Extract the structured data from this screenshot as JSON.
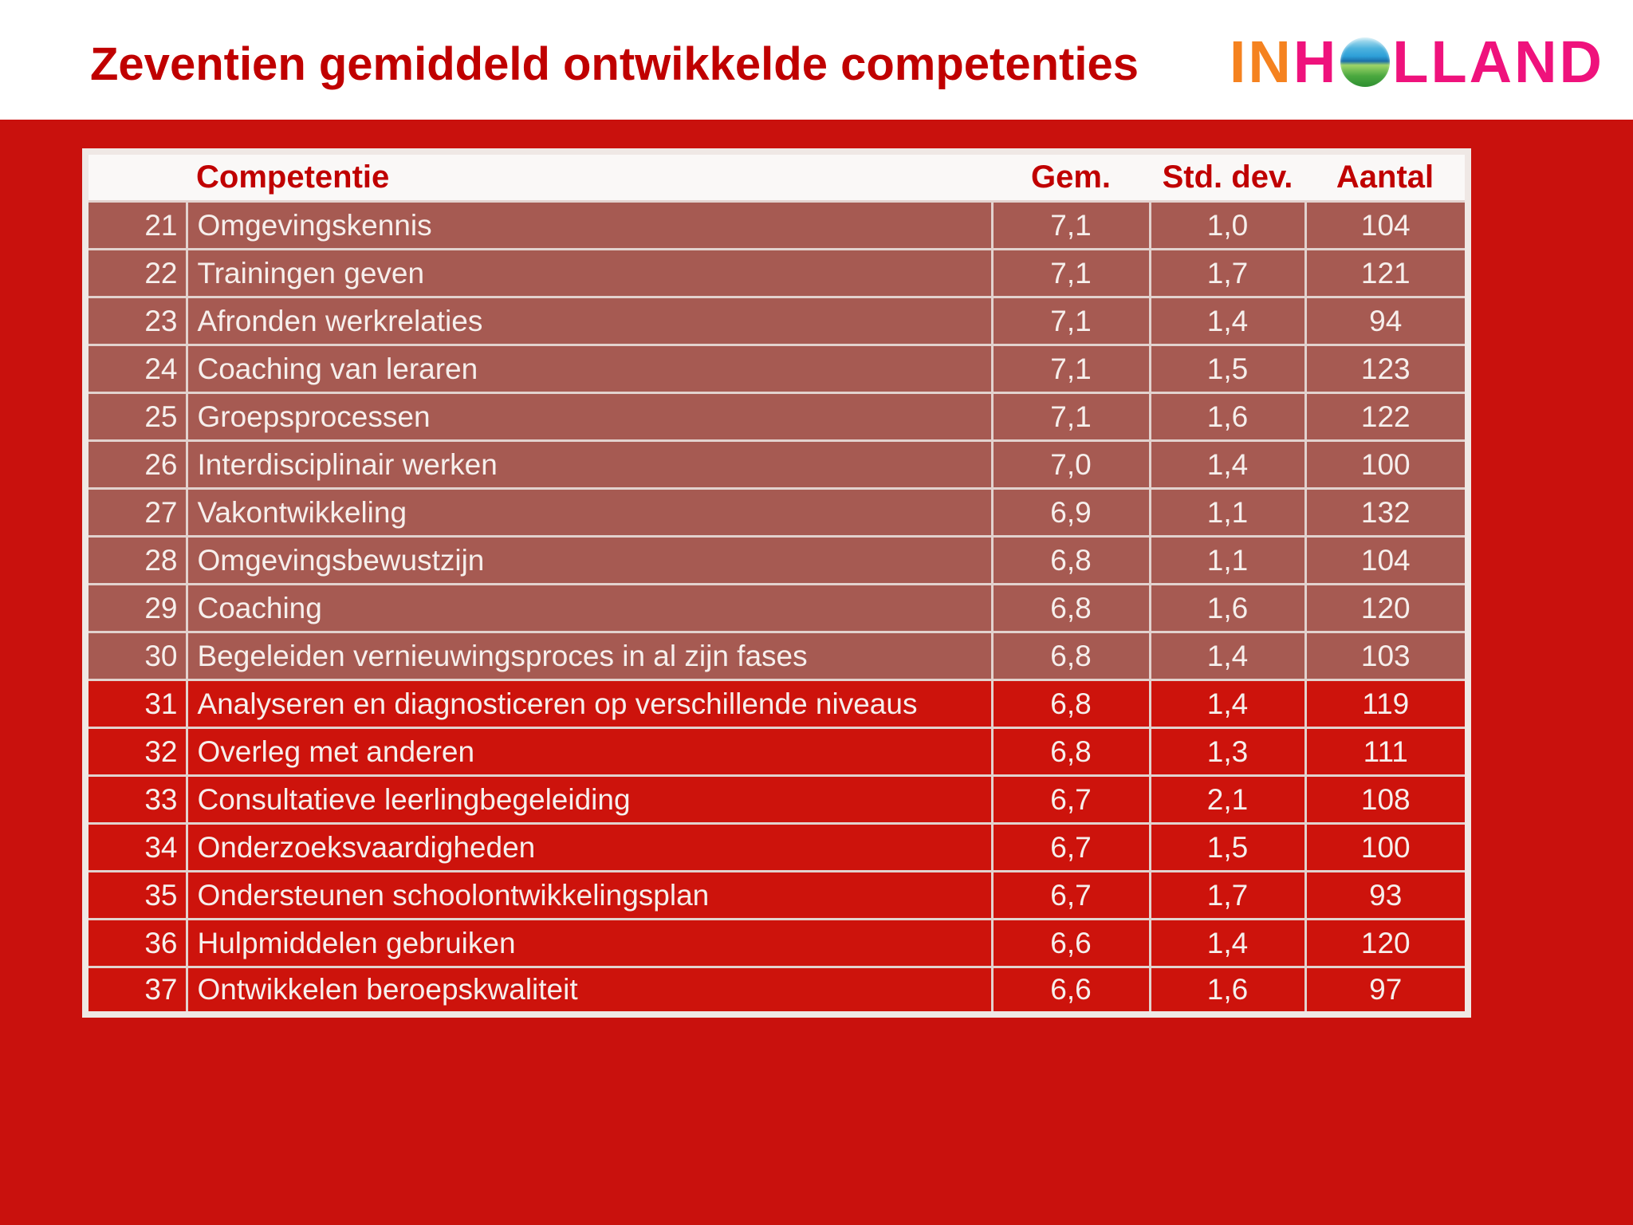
{
  "title": "Zeventien gemiddeld ontwikkelde competenties",
  "logo": {
    "in": "IN",
    "h": "H",
    "globe_icon": "globe-icon",
    "lland": "LLAND"
  },
  "colors": {
    "background_red": "#C9110D",
    "accent_row_red": "#CD130C",
    "mauve_row": "#A65A52",
    "title_red": "#C00000",
    "header_text_red": "#C00000",
    "logo_orange": "#F5821F",
    "logo_pink": "#EF127C",
    "cell_text": "#F6EFEC",
    "grid_line": "#E2D2CE",
    "outer_border": "#EFE8E5",
    "header_bg": "#FAF8F7"
  },
  "table": {
    "headers": {
      "competentie": "Competentie",
      "gem": "Gem.",
      "std_dev": "Std. dev.",
      "aantal": "Aantal"
    },
    "rows": [
      {
        "nr": 21,
        "competentie": "Omgevingskennis",
        "gem": "7,1",
        "std_dev": "1,0",
        "aantal": "104",
        "accent": false
      },
      {
        "nr": 22,
        "competentie": "Trainingen geven",
        "gem": "7,1",
        "std_dev": "1,7",
        "aantal": "121",
        "accent": false
      },
      {
        "nr": 23,
        "competentie": "Afronden werkrelaties",
        "gem": "7,1",
        "std_dev": "1,4",
        "aantal": "94",
        "accent": false
      },
      {
        "nr": 24,
        "competentie": "Coaching van leraren",
        "gem": "7,1",
        "std_dev": "1,5",
        "aantal": "123",
        "accent": false
      },
      {
        "nr": 25,
        "competentie": "Groepsprocessen",
        "gem": "7,1",
        "std_dev": "1,6",
        "aantal": "122",
        "accent": false
      },
      {
        "nr": 26,
        "competentie": "Interdisciplinair werken",
        "gem": "7,0",
        "std_dev": "1,4",
        "aantal": "100",
        "accent": false
      },
      {
        "nr": 27,
        "competentie": "Vakontwikkeling",
        "gem": "6,9",
        "std_dev": "1,1",
        "aantal": "132",
        "accent": false
      },
      {
        "nr": 28,
        "competentie": "Omgevingsbewustzijn",
        "gem": "6,8",
        "std_dev": "1,1",
        "aantal": "104",
        "accent": false
      },
      {
        "nr": 29,
        "competentie": "Coaching",
        "gem": "6,8",
        "std_dev": "1,6",
        "aantal": "120",
        "accent": false
      },
      {
        "nr": 30,
        "competentie": "Begeleiden vernieuwingsproces in al zijn fases",
        "gem": "6,8",
        "std_dev": "1,4",
        "aantal": "103",
        "accent": false
      },
      {
        "nr": 31,
        "competentie": "Analyseren en diagnosticeren op verschillende niveaus",
        "gem": "6,8",
        "std_dev": "1,4",
        "aantal": "119",
        "accent": true
      },
      {
        "nr": 32,
        "competentie": "Overleg met anderen",
        "gem": "6,8",
        "std_dev": "1,3",
        "aantal": "111",
        "accent": true
      },
      {
        "nr": 33,
        "competentie": "Consultatieve leerlingbegeleiding",
        "gem": "6,7",
        "std_dev": "2,1",
        "aantal": "108",
        "accent": true
      },
      {
        "nr": 34,
        "competentie": "Onderzoeksvaardigheden",
        "gem": "6,7",
        "std_dev": "1,5",
        "aantal": "100",
        "accent": true
      },
      {
        "nr": 35,
        "competentie": "Ondersteunen schoolontwikkelingsplan",
        "gem": "6,7",
        "std_dev": "1,7",
        "aantal": "93",
        "accent": true
      },
      {
        "nr": 36,
        "competentie": "Hulpmiddelen gebruiken",
        "gem": "6,6",
        "std_dev": "1,4",
        "aantal": "120",
        "accent": true
      },
      {
        "nr": 37,
        "competentie": "Ontwikkelen beroepskwaliteit",
        "gem": "6,6",
        "std_dev": "1,6",
        "aantal": "97",
        "accent": true
      }
    ]
  }
}
